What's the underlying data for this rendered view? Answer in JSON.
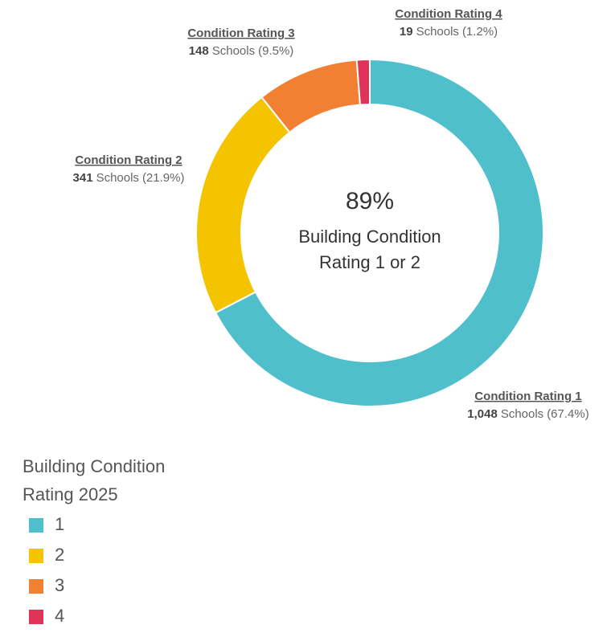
{
  "chart_data": {
    "type": "donut",
    "categories": [
      "Condition Rating 1",
      "Condition Rating 2",
      "Condition Rating 3",
      "Condition Rating 4"
    ],
    "values": [
      67.4,
      21.9,
      9.5,
      1.2
    ],
    "value_labels": [
      "(67.4%)",
      "(21.9%)",
      "(9.5%)",
      "(1.2%)"
    ],
    "count_labels": [
      "1,048",
      "341",
      "148",
      "19"
    ],
    "unit": "Schools",
    "colors": [
      "#4fbfcc",
      "#f5c400",
      "#f28033",
      "#e0335a"
    ],
    "center_label": "89%",
    "center_text": [
      "Building Condition",
      "Rating 1 or 2"
    ],
    "legend_title": [
      "Building Condition",
      "Rating 2025"
    ],
    "legend_labels": [
      "1",
      "2",
      "3",
      "4"
    ]
  }
}
